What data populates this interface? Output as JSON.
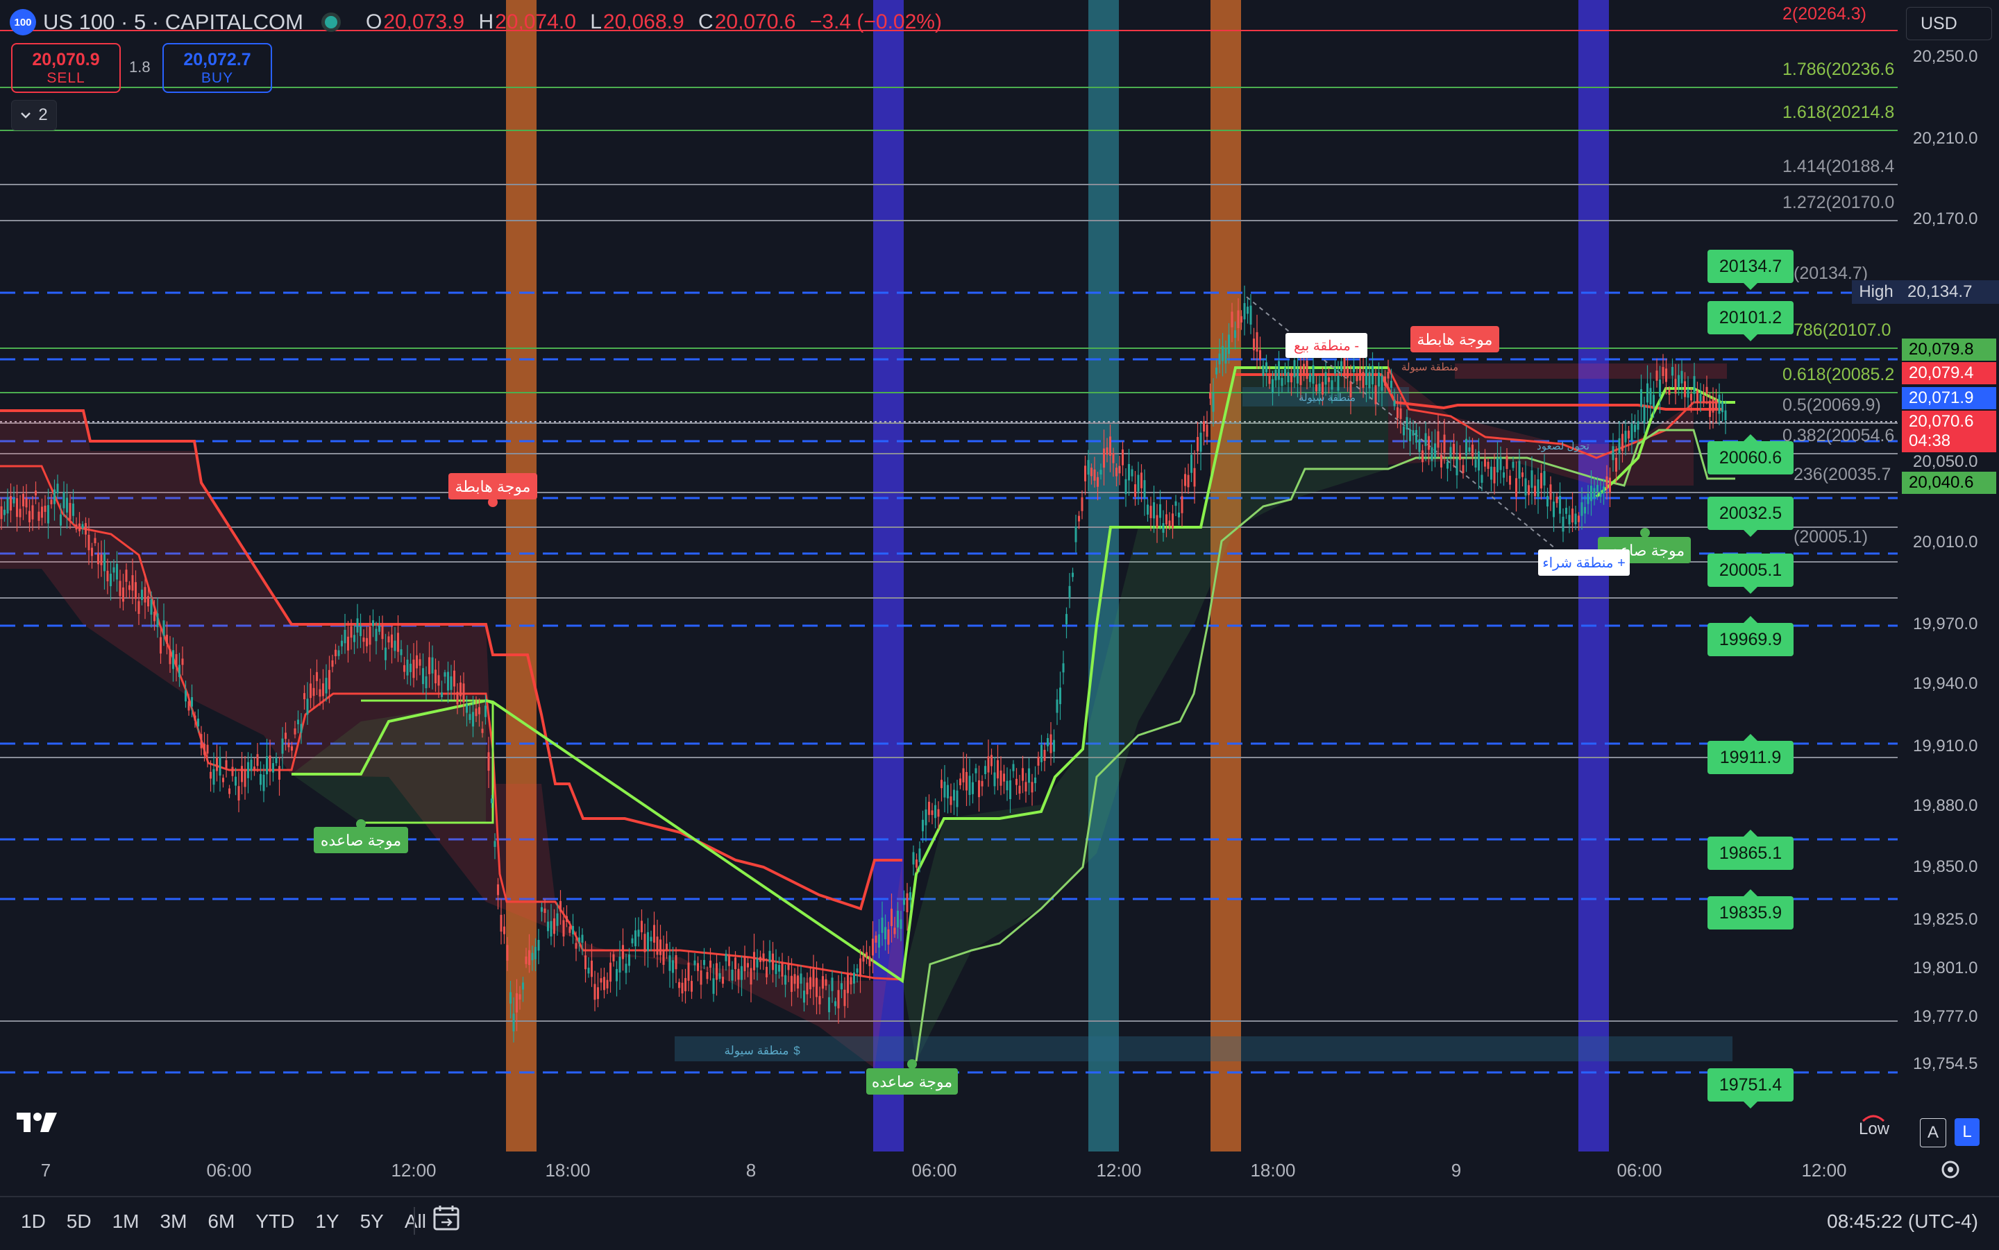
{
  "header": {
    "logo_text": "100",
    "symbol_title": "US 100 · 5 · CAPITALCOM",
    "ohlc": {
      "o_label": "O",
      "o": "20,073.9",
      "h_label": "H",
      "h": "20,074.0",
      "l_label": "L",
      "l": "20,068.9",
      "c_label": "C",
      "c": "20,070.6",
      "change": "−3.4 (−0.02%)"
    }
  },
  "trade": {
    "sell_price": "20,070.9",
    "sell_label": "SELL",
    "spread": "1.8",
    "buy_price": "20,072.7",
    "buy_label": "BUY",
    "collapse_count": "2"
  },
  "currency": "USD",
  "price_axis_labels": [
    "20,250.0",
    "20,210.0",
    "20,170.0",
    "20,050.0",
    "20,010.0",
    "19,970.0",
    "19,940.0",
    "19,910.0",
    "19,880.0",
    "19,850.0",
    "19,825.0",
    "19,801.0",
    "19,777.0",
    "19,754.5"
  ],
  "price_badges": {
    "high_label": "High",
    "high": "20,134.7",
    "green_top": "20,079.8",
    "red1": "20,079.4",
    "blue": "20,071.9",
    "red2": "20,070.6",
    "countdown": "04:38",
    "green_bottom": "20,040.6"
  },
  "fib_labels": [
    "2(20264.3)",
    "1.786(20236.6",
    "1.618(20214.8",
    "1.414(20188.4",
    "1.272(20170.0",
    "(20134.7)",
    "786(20107.0",
    "0.618(20085.2",
    "0.5(20069.9)",
    "0.382(20054.6",
    "236(20035.7",
    "(20005.1)"
  ],
  "level_boxes": [
    "20134.7",
    "20101.2",
    "20060.6",
    "20032.5",
    "20005.1",
    "19969.9",
    "19911.9",
    "19865.1",
    "19835.9",
    "19751.4"
  ],
  "annotations": {
    "wave_down_1": "موجة هابطة",
    "wave_down_2": "موجة هابطة",
    "wave_up_1": "موجة صاعده",
    "wave_up_2": "موجة صاعده",
    "wave_up_3": "موجة صاعده",
    "sell_zone": "منطقة بيع -",
    "buy_zone": "منطقة شراء +",
    "liquidity_1": "منطقة سيولة",
    "liquidity_2": "منطقة سيولة",
    "liquidity_3": "منطقة سيولة",
    "dollar": "$",
    "bull_shift": "تحول لصعود"
  },
  "time_axis_labels": [
    "7",
    "06:00",
    "12:00",
    "18:00",
    "8",
    "06:00",
    "12:00",
    "18:00",
    "9",
    "06:00",
    "12:00"
  ],
  "timeframes": [
    "1D",
    "5D",
    "1M",
    "3M",
    "6M",
    "YTD",
    "1Y",
    "5Y",
    "All"
  ],
  "clock": "08:45:22 (UTC-4)",
  "scale_buttons": {
    "low": "Low",
    "a": "A",
    "l": "L"
  },
  "colors": {
    "bg": "#131722",
    "up": "#4caf50",
    "down": "#f23645",
    "blue": "#2962ff",
    "orange_band": "#c8672a",
    "blue_band": "#3a30c8",
    "teal_band": "#2a7a8a",
    "lime": "#8bf14c",
    "red_step": "#f4433b"
  }
}
